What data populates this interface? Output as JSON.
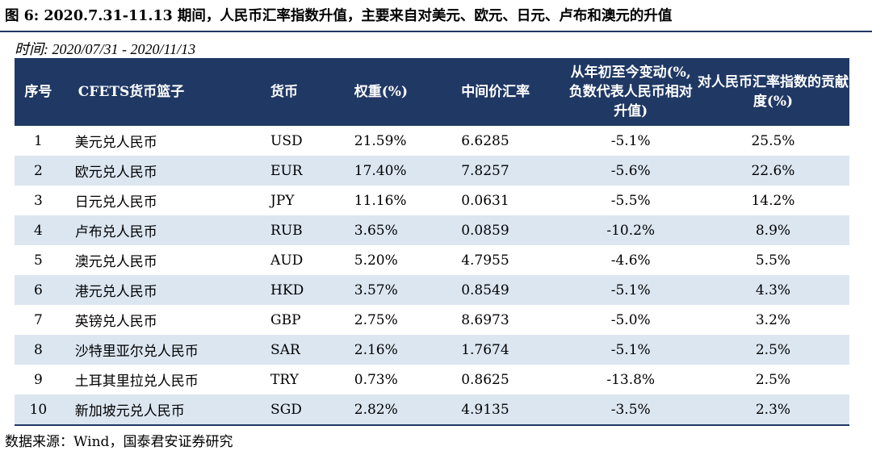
{
  "title": "图 6:  2020.7.31-11.13 期间，人民币汇率指数升值，主要来自对美元、欧元、日元、卢布和澳元的升值",
  "period": "时间: 2020/07/31 - 2020/11/13",
  "headers": {
    "index": "序号",
    "basket": "CFETS货币篮子",
    "currency": "货币",
    "weight": "权重(%)",
    "rate": "中间价汇率",
    "change": "从年初至今变动(%,负数代表人民币相对升值)",
    "contribution": "对人民币汇率指数的贡献度(%)"
  },
  "rows": [
    {
      "idx": "1",
      "name": "美元兑人民币",
      "cur": "USD",
      "weight": "21.59%",
      "rate": "6.6285",
      "chg": "-5.1%",
      "con": "25.5%"
    },
    {
      "idx": "2",
      "name": "欧元兑人民币",
      "cur": "EUR",
      "weight": "17.40%",
      "rate": "7.8257",
      "chg": "-5.6%",
      "con": "22.6%"
    },
    {
      "idx": "3",
      "name": "日元兑人民币",
      "cur": "JPY",
      "weight": "11.16%",
      "rate": "0.0631",
      "chg": "-5.5%",
      "con": "14.2%"
    },
    {
      "idx": "4",
      "name": "卢布兑人民币",
      "cur": "RUB",
      "weight": "3.65%",
      "rate": "0.0859",
      "chg": "-10.2%",
      "con": "8.9%"
    },
    {
      "idx": "5",
      "name": "澳元兑人民币",
      "cur": "AUD",
      "weight": "5.20%",
      "rate": "4.7955",
      "chg": "-4.6%",
      "con": "5.5%"
    },
    {
      "idx": "6",
      "name": "港元兑人民币",
      "cur": "HKD",
      "weight": "3.57%",
      "rate": "0.8549",
      "chg": "-5.1%",
      "con": "4.3%"
    },
    {
      "idx": "7",
      "name": "英镑兑人民币",
      "cur": "GBP",
      "weight": "2.75%",
      "rate": "8.6973",
      "chg": "-5.0%",
      "con": "3.2%"
    },
    {
      "idx": "8",
      "name": "沙特里亚尔兑人民币",
      "cur": "SAR",
      "weight": "2.16%",
      "rate": "1.7674",
      "chg": "-5.1%",
      "con": "2.5%"
    },
    {
      "idx": "9",
      "name": "土耳其里拉兑人民币",
      "cur": "TRY",
      "weight": "0.73%",
      "rate": "0.8625",
      "chg": "-13.8%",
      "con": "2.5%"
    },
    {
      "idx": "10",
      "name": "新加坡元兑人民币",
      "cur": "SGD",
      "weight": "2.82%",
      "rate": "4.9135",
      "chg": "-3.5%",
      "con": "2.3%"
    }
  ],
  "source": "数据来源：Wind，国泰君安证券研究",
  "colors": {
    "header_bg": "#1f3864",
    "stripe_bg": "#dce6f1"
  }
}
